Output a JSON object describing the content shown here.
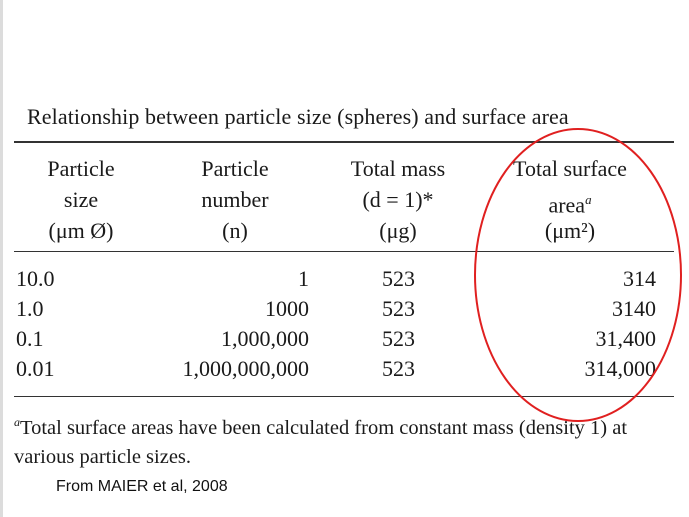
{
  "title": "Relationship between particle size (spheres) and surface area",
  "columns": [
    {
      "lines": [
        "Particle",
        "size",
        "(μm Ø)"
      ]
    },
    {
      "lines": [
        "Particle",
        "number",
        "(n)"
      ]
    },
    {
      "lines": [
        "Total mass",
        "(d = 1)*",
        "(μg)"
      ]
    },
    {
      "lines": [
        "Total surface",
        "area",
        "(μm²)"
      ],
      "footnote_mark": "a"
    }
  ],
  "rows": [
    {
      "size": "10.0",
      "number": "1",
      "mass": "523",
      "area": "314"
    },
    {
      "size": "1.0",
      "number": "1000",
      "mass": "523",
      "area": "3140"
    },
    {
      "size": "0.1",
      "number": "1,000,000",
      "mass": "523",
      "area": "31,400"
    },
    {
      "size": "0.01",
      "number": "1,000,000,000",
      "mass": "523",
      "area": "314,000"
    }
  ],
  "footnote": {
    "mark": "a",
    "text": "Total surface areas have been calculated from constant mass (density 1) at various particle sizes."
  },
  "source": "From MAIER et al, 2008",
  "colors": {
    "highlight_circle": "#e02020",
    "rules": "#333333",
    "text": "#1a1a1a"
  }
}
